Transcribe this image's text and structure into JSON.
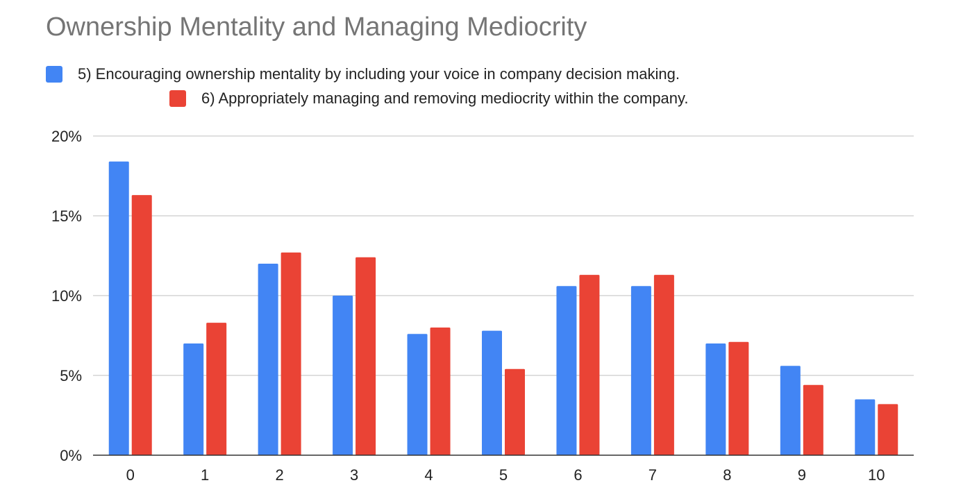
{
  "chart_data": {
    "type": "bar",
    "title": "Ownership Mentality and Managing Mediocrity",
    "xlabel": "",
    "ylabel": "",
    "categories": [
      "0",
      "1",
      "2",
      "3",
      "4",
      "5",
      "6",
      "7",
      "8",
      "9",
      "10"
    ],
    "series": [
      {
        "name": "5) Encouraging ownership mentality by including your voice in company decision making.",
        "color": "#4285f4",
        "values": [
          18.4,
          7.0,
          12.0,
          10.0,
          7.6,
          7.8,
          10.6,
          10.6,
          7.0,
          5.6,
          3.5
        ]
      },
      {
        "name": "6) Appropriately managing and removing mediocrity within the company.",
        "color": "#ea4335",
        "values": [
          16.3,
          8.3,
          12.7,
          12.4,
          8.0,
          5.4,
          11.3,
          11.3,
          7.1,
          4.4,
          3.2
        ]
      }
    ],
    "ylim": [
      0,
      20
    ],
    "yticks": [
      "0%",
      "5%",
      "10%",
      "15%",
      "20%"
    ],
    "ytick_values": [
      0,
      5,
      10,
      15,
      20
    ],
    "grid": true,
    "legend_position": "top"
  }
}
